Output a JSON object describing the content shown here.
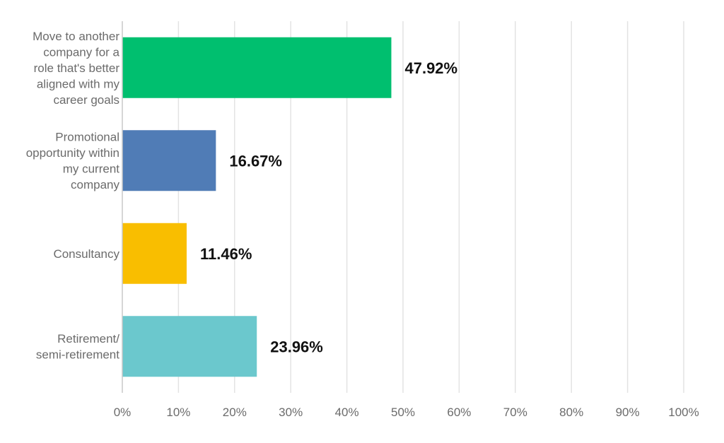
{
  "chart_data": {
    "type": "bar",
    "orientation": "horizontal",
    "categories": [
      [
        "Move to another",
        "company for a",
        "role that's better",
        "aligned with my",
        "career goals"
      ],
      [
        "Promotional",
        "opportunity within",
        "my current",
        "company"
      ],
      [
        "Consultancy"
      ],
      [
        "Retirement/",
        "semi-retirement"
      ]
    ],
    "values": [
      47.92,
      16.67,
      11.46,
      23.96
    ],
    "value_labels": [
      "47.92%",
      "16.67%",
      "11.46%",
      "23.96%"
    ],
    "colors": [
      "#00bf6f",
      "#507cb6",
      "#f9be00",
      "#6bc8cd"
    ],
    "xlim": [
      0,
      100
    ],
    "x_ticks": [
      "0%",
      "10%",
      "20%",
      "30%",
      "40%",
      "50%",
      "60%",
      "70%",
      "80%",
      "90%",
      "100%"
    ],
    "grid": true,
    "legend": false
  }
}
